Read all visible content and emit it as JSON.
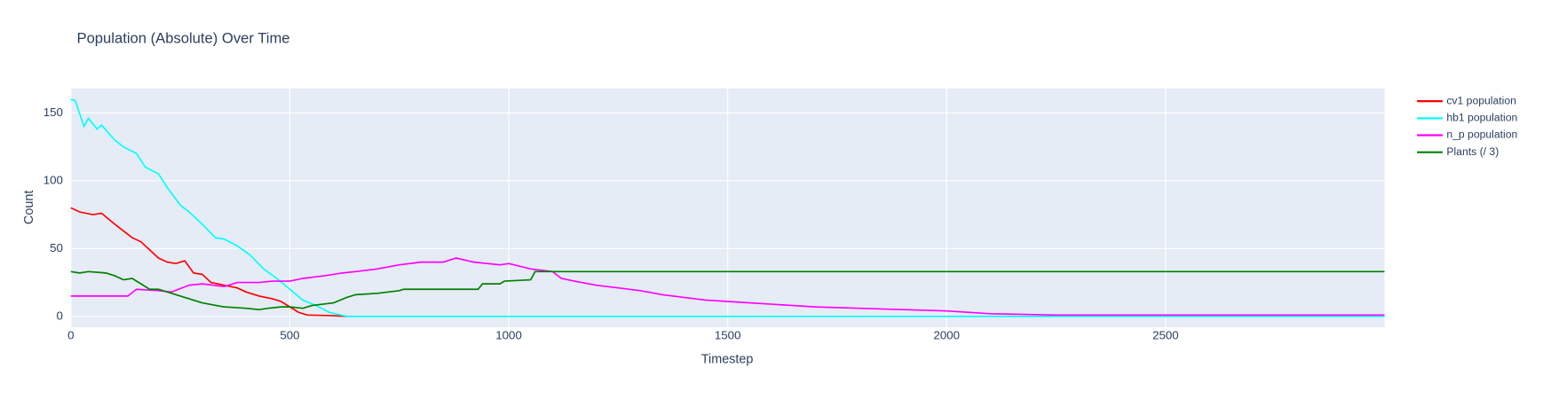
{
  "chart_data": {
    "type": "line",
    "title": "Population (Absolute) Over Time",
    "xlabel": "Timestep",
    "ylabel": "Count",
    "xlim": [
      0,
      3000
    ],
    "ylim": [
      -8,
      168
    ],
    "xticks": [
      0,
      500,
      1000,
      1500,
      2000,
      2500
    ],
    "yticks": [
      0,
      50,
      100,
      150
    ],
    "grid": true,
    "legend": "right",
    "series": [
      {
        "name": "cv1 population",
        "color": "#ff0000",
        "x": [
          0,
          20,
          50,
          70,
          100,
          120,
          140,
          160,
          180,
          200,
          220,
          240,
          260,
          280,
          300,
          320,
          350,
          380,
          400,
          430,
          460,
          480,
          500,
          520,
          540,
          600,
          630
        ],
        "values": [
          80,
          77,
          75,
          76,
          68,
          63,
          58,
          55,
          49,
          43,
          40,
          39,
          41,
          32,
          31,
          25,
          23,
          21,
          18,
          15,
          13,
          11,
          7,
          3,
          1,
          0.5,
          0
        ]
      },
      {
        "name": "hb1 population",
        "color": "#00ffff",
        "x": [
          0,
          10,
          30,
          40,
          60,
          70,
          100,
          120,
          150,
          170,
          200,
          220,
          250,
          270,
          300,
          330,
          350,
          380,
          410,
          440,
          470,
          500,
          530,
          560,
          590,
          630,
          3000
        ],
        "values": [
          160,
          159,
          140,
          146,
          138,
          141,
          130,
          125,
          120,
          110,
          105,
          95,
          82,
          77,
          68,
          58,
          57,
          52,
          45,
          35,
          28,
          20,
          12,
          8,
          3,
          0,
          0
        ]
      },
      {
        "name": "n_p population",
        "color": "#ff00ff",
        "x": [
          0,
          130,
          150,
          200,
          230,
          270,
          300,
          350,
          380,
          430,
          460,
          500,
          530,
          580,
          620,
          650,
          700,
          750,
          800,
          850,
          880,
          920,
          980,
          1000,
          1050,
          1100,
          1120,
          1150,
          1200,
          1250,
          1300,
          1350,
          1400,
          1450,
          1500,
          1600,
          1700,
          1800,
          1900,
          2000,
          2100,
          2250,
          3000
        ],
        "values": [
          15,
          15,
          20,
          19,
          18,
          23,
          24,
          22,
          25,
          25,
          26,
          26,
          28,
          30,
          32,
          33,
          35,
          38,
          40,
          40,
          43,
          40,
          38,
          39,
          35,
          33,
          28,
          26,
          23,
          21,
          19,
          16,
          14,
          12,
          11,
          9,
          7,
          6,
          5,
          4,
          2,
          1,
          1
        ]
      },
      {
        "name": "Plants (/ 3)",
        "color": "#008000",
        "x": [
          0,
          20,
          40,
          80,
          100,
          120,
          140,
          160,
          180,
          200,
          230,
          260,
          300,
          350,
          400,
          430,
          450,
          480,
          500,
          530,
          550,
          600,
          630,
          650,
          700,
          750,
          760,
          930,
          940,
          980,
          990,
          1050,
          1060,
          3000
        ],
        "values": [
          33,
          32,
          33,
          32,
          30,
          27,
          28,
          24,
          20,
          20,
          17,
          14,
          10,
          7,
          6,
          5,
          6,
          7,
          7,
          6,
          8,
          10,
          14,
          16,
          17,
          19,
          20,
          20,
          24,
          24,
          26,
          27,
          33,
          33
        ]
      }
    ]
  }
}
